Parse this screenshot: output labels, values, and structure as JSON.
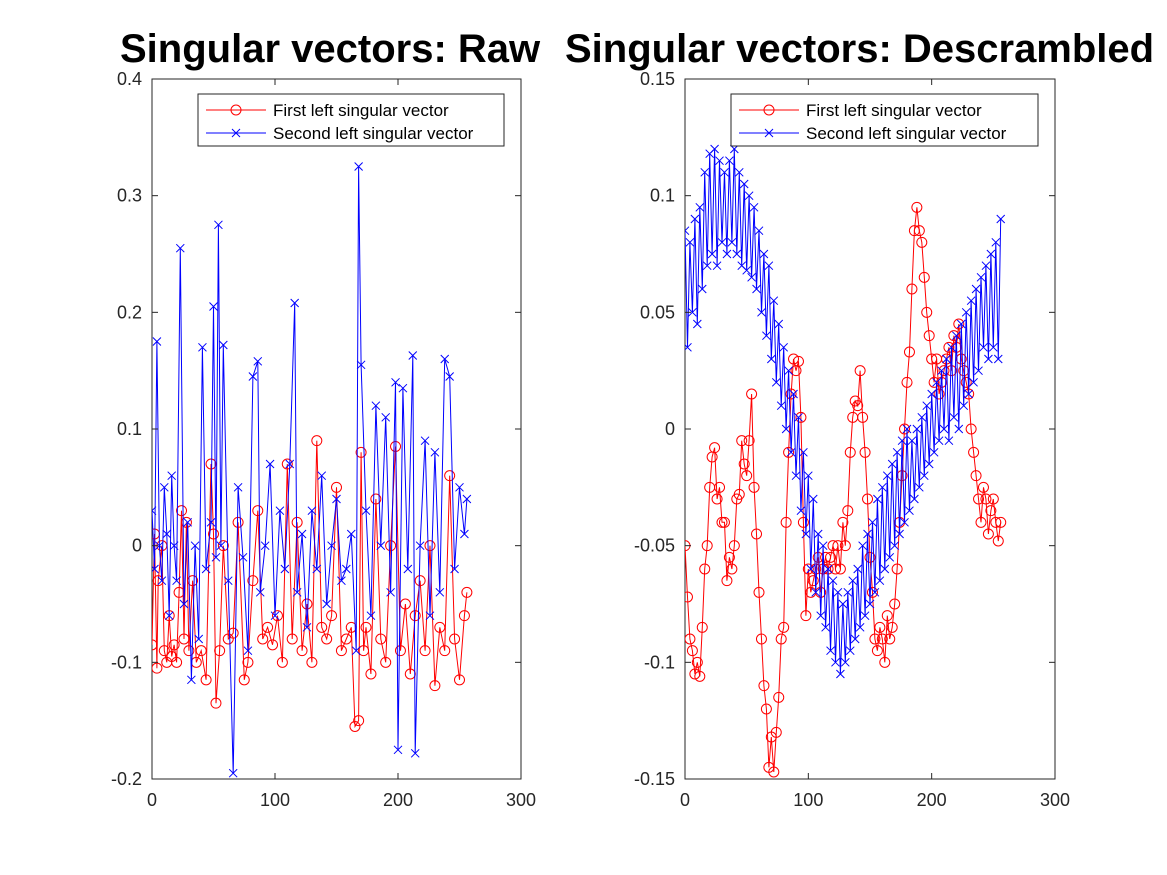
{
  "chart_data": [
    {
      "type": "line",
      "title": "Singular vectors: Raw",
      "xlim": [
        0,
        300
      ],
      "ylim": [
        -0.2,
        0.4
      ],
      "xticks": [
        "0",
        "100",
        "200",
        "300"
      ],
      "yticks": [
        "-0.2",
        "-0.1",
        "0",
        "0.1",
        "0.2",
        "0.3",
        "0.4"
      ],
      "legend_position": "top-right",
      "series": [
        {
          "name": "First left singular vector",
          "color": "#ff0000",
          "marker": "circle",
          "x": [
            0,
            2,
            4,
            5,
            8,
            10,
            12,
            14,
            16,
            18,
            20,
            22,
            24,
            26,
            28,
            30,
            33,
            36,
            40,
            44,
            48,
            50,
            52,
            55,
            58,
            62,
            66,
            70,
            75,
            78,
            82,
            86,
            90,
            94,
            98,
            102,
            106,
            110,
            114,
            118,
            122,
            126,
            130,
            134,
            138,
            142,
            146,
            150,
            154,
            158,
            162,
            165,
            168,
            170,
            172,
            174,
            178,
            182,
            186,
            190,
            194,
            198,
            202,
            206,
            210,
            214,
            218,
            222,
            226,
            230,
            234,
            238,
            242,
            246,
            250,
            254,
            256
          ],
          "y": [
            -0.085,
            0.01,
            -0.105,
            -0.03,
            0.0,
            -0.09,
            -0.1,
            -0.06,
            -0.095,
            -0.085,
            -0.1,
            -0.04,
            0.03,
            -0.08,
            0.02,
            -0.09,
            -0.03,
            -0.1,
            -0.09,
            -0.115,
            0.07,
            0.01,
            -0.135,
            -0.09,
            0.0,
            -0.08,
            -0.075,
            0.02,
            -0.115,
            -0.1,
            -0.03,
            0.03,
            -0.08,
            -0.07,
            -0.085,
            -0.06,
            -0.1,
            0.07,
            -0.08,
            0.02,
            -0.09,
            -0.05,
            -0.1,
            0.09,
            -0.07,
            -0.08,
            -0.06,
            0.05,
            -0.09,
            -0.08,
            -0.07,
            -0.155,
            -0.15,
            0.08,
            -0.09,
            -0.07,
            -0.11,
            0.04,
            -0.08,
            -0.1,
            0.0,
            0.085,
            -0.09,
            -0.05,
            -0.11,
            -0.06,
            -0.03,
            -0.09,
            0.0,
            -0.12,
            -0.07,
            -0.09,
            0.06,
            -0.08,
            -0.115,
            -0.06,
            -0.04
          ]
        },
        {
          "name": "Second left singular vector",
          "color": "#0000ff",
          "marker": "x",
          "x": [
            0,
            2,
            4,
            6,
            8,
            10,
            12,
            14,
            16,
            18,
            20,
            23,
            26,
            29,
            32,
            35,
            38,
            41,
            44,
            48,
            50,
            52,
            54,
            56,
            58,
            62,
            66,
            70,
            74,
            78,
            82,
            86,
            88,
            92,
            96,
            100,
            104,
            108,
            112,
            116,
            118,
            122,
            126,
            130,
            134,
            138,
            142,
            146,
            150,
            154,
            158,
            162,
            166,
            168,
            170,
            174,
            178,
            182,
            186,
            190,
            194,
            198,
            200,
            204,
            208,
            212,
            214,
            218,
            222,
            226,
            230,
            234,
            238,
            242,
            246,
            250,
            254,
            256
          ],
          "y": [
            0.03,
            -0.02,
            0.175,
            0.0,
            -0.03,
            0.05,
            0.01,
            -0.06,
            0.06,
            0.0,
            -0.03,
            0.255,
            -0.05,
            0.02,
            -0.115,
            0.0,
            -0.08,
            0.17,
            -0.02,
            0.02,
            0.205,
            -0.01,
            0.275,
            0.0,
            0.172,
            -0.03,
            -0.195,
            0.05,
            -0.01,
            -0.09,
            0.145,
            0.158,
            -0.04,
            0.0,
            0.07,
            -0.06,
            0.03,
            -0.02,
            0.07,
            0.208,
            -0.04,
            0.01,
            -0.07,
            0.03,
            -0.02,
            0.06,
            -0.05,
            0.0,
            0.04,
            -0.03,
            -0.02,
            0.01,
            -0.09,
            0.325,
            0.155,
            0.03,
            -0.06,
            0.12,
            0.0,
            0.11,
            -0.04,
            0.14,
            -0.175,
            0.135,
            -0.02,
            0.163,
            -0.178,
            0.0,
            0.09,
            -0.06,
            0.08,
            -0.04,
            0.16,
            0.145,
            -0.02,
            0.05,
            0.01,
            0.04
          ]
        }
      ]
    },
    {
      "type": "line",
      "title": "Singular vectors: Descrambled",
      "xlim": [
        0,
        300
      ],
      "ylim": [
        -0.15,
        0.15
      ],
      "xticks": [
        "0",
        "100",
        "200",
        "300"
      ],
      "yticks": [
        "-0.15",
        "-0.1",
        "-0.05",
        "0",
        "0.05",
        "0.1",
        "0.15"
      ],
      "legend_position": "top-right",
      "series": [
        {
          "name": "First left singular vector",
          "color": "#ff0000",
          "marker": "circle",
          "x": [
            0,
            2,
            4,
            6,
            8,
            10,
            12,
            14,
            16,
            18,
            20,
            22,
            24,
            26,
            28,
            30,
            32,
            34,
            36,
            38,
            40,
            42,
            44,
            46,
            48,
            50,
            52,
            54,
            56,
            58,
            60,
            62,
            64,
            66,
            68,
            70,
            72,
            74,
            76,
            78,
            80,
            82,
            84,
            86,
            88,
            90,
            92,
            94,
            96,
            98,
            100,
            102,
            104,
            106,
            108,
            110,
            112,
            114,
            116,
            118,
            120,
            122,
            124,
            126,
            128,
            130,
            132,
            134,
            136,
            138,
            140,
            142,
            144,
            146,
            148,
            150,
            152,
            154,
            156,
            158,
            160,
            162,
            164,
            166,
            168,
            170,
            172,
            174,
            176,
            178,
            180,
            182,
            184,
            186,
            188,
            190,
            192,
            194,
            196,
            198,
            200,
            202,
            204,
            206,
            208,
            210,
            212,
            214,
            216,
            218,
            220,
            222,
            224,
            226,
            228,
            230,
            232,
            234,
            236,
            238,
            240,
            242,
            244,
            246,
            248,
            250,
            252,
            254,
            256
          ],
          "y": [
            -0.05,
            -0.072,
            -0.09,
            -0.095,
            -0.105,
            -0.1,
            -0.106,
            -0.085,
            -0.06,
            -0.05,
            -0.025,
            -0.012,
            -0.008,
            -0.03,
            -0.025,
            -0.04,
            -0.04,
            -0.065,
            -0.055,
            -0.06,
            -0.05,
            -0.03,
            -0.028,
            -0.005,
            -0.015,
            -0.02,
            -0.005,
            0.015,
            -0.025,
            -0.045,
            -0.07,
            -0.09,
            -0.11,
            -0.12,
            -0.145,
            -0.132,
            -0.147,
            -0.13,
            -0.115,
            -0.09,
            -0.085,
            -0.04,
            -0.01,
            0.015,
            0.03,
            0.025,
            0.029,
            0.005,
            -0.04,
            -0.08,
            -0.06,
            -0.07,
            -0.065,
            -0.06,
            -0.055,
            -0.07,
            -0.06,
            -0.055,
            -0.06,
            -0.055,
            -0.05,
            -0.06,
            -0.05,
            -0.06,
            -0.04,
            -0.05,
            -0.035,
            -0.01,
            0.005,
            0.012,
            0.01,
            0.025,
            0.005,
            -0.01,
            -0.03,
            -0.055,
            -0.07,
            -0.09,
            -0.095,
            -0.085,
            -0.09,
            -0.1,
            -0.08,
            -0.09,
            -0.085,
            -0.075,
            -0.06,
            -0.04,
            -0.02,
            0.0,
            0.02,
            0.033,
            0.06,
            0.085,
            0.095,
            0.085,
            0.08,
            0.065,
            0.05,
            0.04,
            0.03,
            0.02,
            0.03,
            0.015,
            0.02,
            0.025,
            0.03,
            0.035,
            0.025,
            0.04,
            0.035,
            0.045,
            0.03,
            0.025,
            0.02,
            0.015,
            0.0,
            -0.01,
            -0.02,
            -0.03,
            -0.04,
            -0.025,
            -0.03,
            -0.045,
            -0.035,
            -0.03,
            -0.04,
            -0.048,
            -0.04
          ]
        },
        {
          "name": "Second left singular vector",
          "color": "#0000ff",
          "marker": "x",
          "x": [
            0,
            2,
            4,
            6,
            8,
            10,
            12,
            14,
            16,
            18,
            20,
            22,
            24,
            26,
            28,
            30,
            32,
            34,
            36,
            38,
            40,
            42,
            44,
            46,
            48,
            50,
            52,
            54,
            56,
            58,
            60,
            62,
            64,
            66,
            68,
            70,
            72,
            74,
            76,
            78,
            80,
            82,
            84,
            86,
            88,
            90,
            92,
            94,
            96,
            98,
            100,
            102,
            104,
            106,
            108,
            110,
            112,
            114,
            116,
            118,
            120,
            122,
            124,
            126,
            128,
            130,
            132,
            134,
            136,
            138,
            140,
            142,
            144,
            146,
            148,
            150,
            152,
            154,
            156,
            158,
            160,
            162,
            164,
            166,
            168,
            170,
            172,
            174,
            176,
            178,
            180,
            182,
            184,
            186,
            188,
            190,
            192,
            194,
            196,
            198,
            200,
            202,
            204,
            206,
            208,
            210,
            212,
            214,
            216,
            218,
            220,
            222,
            224,
            226,
            228,
            230,
            232,
            234,
            236,
            238,
            240,
            242,
            244,
            246,
            248,
            250,
            252,
            254,
            256
          ],
          "y": [
            0.085,
            0.035,
            0.08,
            0.05,
            0.09,
            0.045,
            0.095,
            0.06,
            0.11,
            0.07,
            0.118,
            0.075,
            0.12,
            0.07,
            0.115,
            0.08,
            0.11,
            0.075,
            0.115,
            0.08,
            0.12,
            0.075,
            0.11,
            0.07,
            0.105,
            0.068,
            0.1,
            0.065,
            0.095,
            0.06,
            0.085,
            0.05,
            0.075,
            0.04,
            0.07,
            0.03,
            0.055,
            0.02,
            0.045,
            0.01,
            0.035,
            0.0,
            0.025,
            -0.01,
            0.015,
            -0.02,
            0.005,
            -0.035,
            -0.01,
            -0.045,
            -0.02,
            -0.06,
            -0.03,
            -0.07,
            -0.045,
            -0.08,
            -0.05,
            -0.085,
            -0.06,
            -0.095,
            -0.065,
            -0.1,
            -0.07,
            -0.105,
            -0.075,
            -0.1,
            -0.07,
            -0.095,
            -0.065,
            -0.09,
            -0.06,
            -0.085,
            -0.05,
            -0.08,
            -0.045,
            -0.075,
            -0.04,
            -0.07,
            -0.03,
            -0.065,
            -0.025,
            -0.06,
            -0.02,
            -0.055,
            -0.015,
            -0.05,
            -0.01,
            -0.045,
            -0.005,
            -0.04,
            0.0,
            -0.035,
            -0.005,
            -0.03,
            0.0,
            -0.025,
            0.005,
            -0.02,
            0.01,
            -0.015,
            0.015,
            -0.01,
            0.02,
            -0.005,
            0.025,
            0.0,
            0.03,
            -0.005,
            0.035,
            0.005,
            0.04,
            0.0,
            0.045,
            0.01,
            0.05,
            0.015,
            0.055,
            0.02,
            0.06,
            0.025,
            0.065,
            0.035,
            0.07,
            0.03,
            0.075,
            0.035,
            0.08,
            0.03,
            0.09
          ]
        }
      ]
    }
  ]
}
